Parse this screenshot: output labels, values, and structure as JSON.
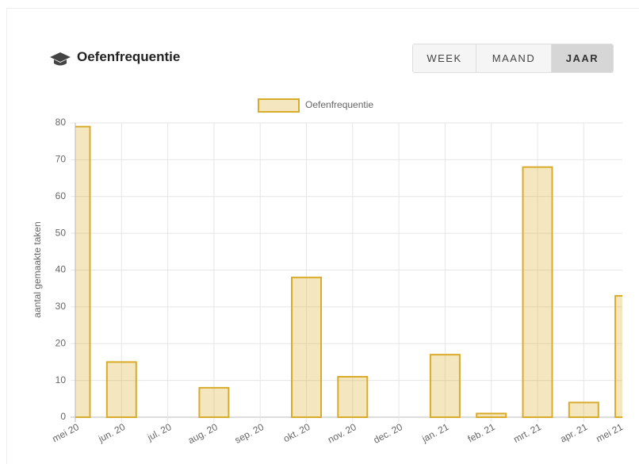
{
  "header": {
    "title": "Oefenfrequentie",
    "buttons": [
      "WEEK",
      "MAAND",
      "JAAR"
    ]
  },
  "chart_data": {
    "type": "bar",
    "y_label": "aantal gemaakte taken",
    "categories": [
      "mei 20",
      "jun. 20",
      "jul. 20",
      "aug. 20",
      "sep. 20",
      "okt. 20",
      "nov. 20",
      "dec. 20",
      "jan. 21",
      "feb. 21",
      "mrt. 21",
      "apr. 21",
      "mei 21"
    ],
    "series": [
      {
        "name": "Oefenfrequentie",
        "color": "#d9ab2b",
        "values": [
          79,
          15,
          0,
          8,
          0,
          38,
          11,
          0,
          17,
          1,
          68,
          4,
          33
        ]
      }
    ],
    "ylim": [
      0,
      80
    ],
    "yticks": [
      0,
      10,
      20,
      30,
      40,
      50,
      60,
      70,
      80
    ],
    "grid": true
  }
}
